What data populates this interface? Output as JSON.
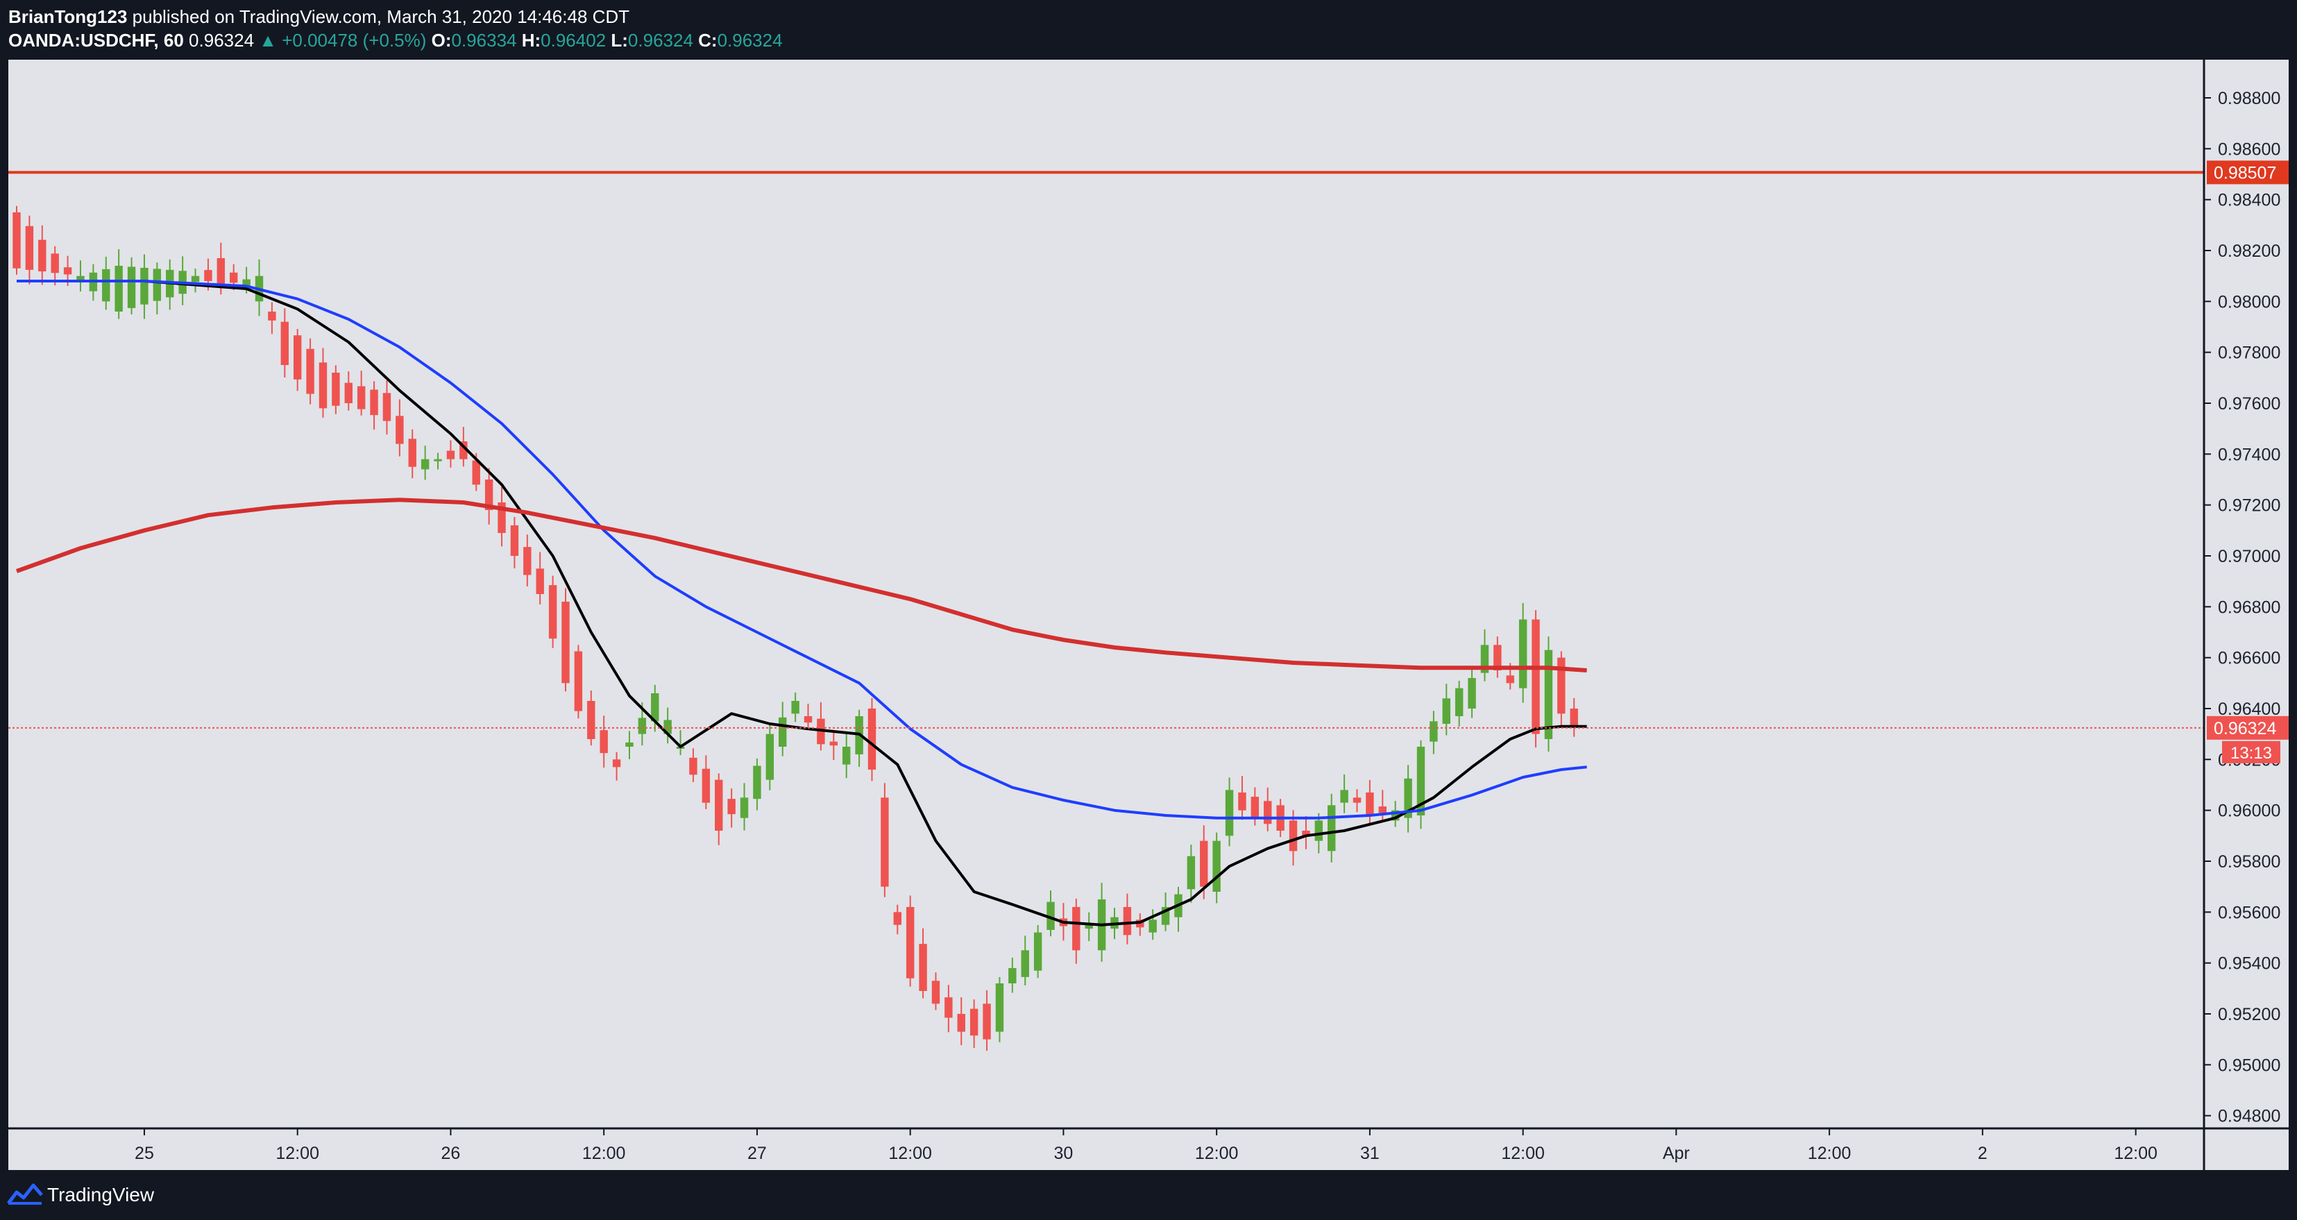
{
  "header": {
    "author": "BrianTong123",
    "published_text": " published on TradingView.com, March 31, 2020 14:46:48 CDT",
    "symbol": "OANDA:USDCHF, 60",
    "last": "0.96324",
    "change": "▲ +0.00478 (+0.5%)",
    "o_label": "O:",
    "o_value": "0.96334",
    "h_label": "H:",
    "h_value": "0.96402",
    "l_label": "L:",
    "l_value": "0.96324",
    "c_label": "C:",
    "c_value": "0.96324"
  },
  "footer": {
    "brand": "TradingView"
  },
  "colors": {
    "background": "#e1e3e8",
    "frame": "#131722",
    "up": "#5aa83a",
    "down": "#ef5350",
    "ma_black": "#000000",
    "ma_blue": "#1f3dff",
    "ma_red": "#d32f2f",
    "resistance": "#e0391f",
    "axis_text": "#1e222d"
  },
  "chart_data": {
    "type": "candlestick",
    "title": "OANDA:USDCHF, 60",
    "ylim": [
      0.9475,
      0.9895
    ],
    "xlim": [
      0,
      172
    ],
    "y_ticks": [
      "0.98800",
      "0.98600",
      "0.98400",
      "0.98200",
      "0.98000",
      "0.97800",
      "0.97600",
      "0.97400",
      "0.97200",
      "0.97000",
      "0.96800",
      "0.96600",
      "0.96400",
      "0.96200",
      "0.96000",
      "0.95800",
      "0.95600",
      "0.95400",
      "0.95200",
      "0.95000",
      "0.94800"
    ],
    "x_ticks": [
      {
        "label": "25",
        "x": 10
      },
      {
        "label": "12:00",
        "x": 22
      },
      {
        "label": "26",
        "x": 34
      },
      {
        "label": "12:00",
        "x": 46
      },
      {
        "label": "27",
        "x": 58
      },
      {
        "label": "12:00",
        "x": 70
      },
      {
        "label": "30",
        "x": 82
      },
      {
        "label": "12:00",
        "x": 94
      },
      {
        "label": "31",
        "x": 106
      },
      {
        "label": "12:00",
        "x": 118
      },
      {
        "label": "Apr",
        "x": 130
      },
      {
        "label": "12:00",
        "x": 142
      },
      {
        "label": "2",
        "x": 154
      },
      {
        "label": "12:00",
        "x": 166
      }
    ],
    "horizontal_line": {
      "value": 0.98507,
      "label": "0.98507"
    },
    "last_price": {
      "value": 0.96324,
      "label": "0.96324",
      "countdown": "13:13"
    },
    "candle_anchors": [
      [
        0,
        0.9835,
        0.9813
      ],
      [
        5,
        0.9808,
        0.981
      ],
      [
        8,
        0.9796,
        0.9814
      ],
      [
        13,
        0.9803,
        0.9812
      ],
      [
        16,
        0.9817,
        0.9806
      ],
      [
        19,
        0.98,
        0.981
      ],
      [
        21,
        0.9792,
        0.9775
      ],
      [
        24,
        0.9776,
        0.9758
      ],
      [
        26,
        0.9768,
        0.976
      ],
      [
        29,
        0.9764,
        0.9753
      ],
      [
        31,
        0.9746,
        0.9735
      ],
      [
        32,
        0.9734,
        0.9738
      ],
      [
        35,
        0.9745,
        0.9738
      ],
      [
        37,
        0.973,
        0.9718
      ],
      [
        39,
        0.9712,
        0.97
      ],
      [
        41,
        0.9695,
        0.9685
      ],
      [
        43,
        0.9682,
        0.965
      ],
      [
        45,
        0.9643,
        0.9628
      ],
      [
        47,
        0.962,
        0.9617
      ],
      [
        50,
        0.9635,
        0.9646
      ],
      [
        52,
        0.9625,
        0.9625
      ],
      [
        55,
        0.9612,
        0.9592
      ],
      [
        57,
        0.9597,
        0.9605
      ],
      [
        59,
        0.9612,
        0.963
      ],
      [
        61,
        0.9638,
        0.9643
      ],
      [
        63,
        0.9636,
        0.9626
      ],
      [
        65,
        0.9618,
        0.9625
      ],
      [
        66,
        0.9622,
        0.9637
      ],
      [
        67,
        0.964,
        0.9616
      ],
      [
        68,
        0.9605,
        0.957
      ],
      [
        69,
        0.956,
        0.9555
      ],
      [
        70,
        0.9562,
        0.9534
      ],
      [
        72,
        0.9533,
        0.9524
      ],
      [
        74,
        0.952,
        0.9513
      ],
      [
        76,
        0.9524,
        0.951
      ],
      [
        77,
        0.9513,
        0.9532
      ],
      [
        78,
        0.9532,
        0.9538
      ],
      [
        80,
        0.9537,
        0.9552
      ],
      [
        81,
        0.9553,
        0.9564
      ],
      [
        83,
        0.9562,
        0.9545
      ],
      [
        85,
        0.9545,
        0.9565
      ],
      [
        87,
        0.9562,
        0.9551
      ],
      [
        89,
        0.9552,
        0.9557
      ],
      [
        91,
        0.9558,
        0.9567
      ],
      [
        92,
        0.9569,
        0.9582
      ],
      [
        93,
        0.9588,
        0.957
      ],
      [
        94,
        0.9568,
        0.9588
      ],
      [
        95,
        0.959,
        0.9608
      ],
      [
        96,
        0.9607,
        0.96
      ],
      [
        99,
        0.9602,
        0.9592
      ],
      [
        100,
        0.9596,
        0.9584
      ],
      [
        103,
        0.9584,
        0.9602
      ],
      [
        104,
        0.9603,
        0.9608
      ],
      [
        106,
        0.9607,
        0.9598
      ],
      [
        108,
        0.9596,
        0.96
      ],
      [
        110,
        0.9598,
        0.9625
      ],
      [
        111,
        0.9627,
        0.9635
      ],
      [
        112,
        0.9634,
        0.9644
      ],
      [
        114,
        0.964,
        0.9652
      ],
      [
        115,
        0.9654,
        0.9665
      ],
      [
        116,
        0.9665,
        0.9655
      ],
      [
        117,
        0.9653,
        0.965
      ],
      [
        118,
        0.9648,
        0.9675
      ],
      [
        119,
        0.9675,
        0.963
      ],
      [
        120,
        0.9628,
        0.9663
      ],
      [
        121,
        0.966,
        0.9638
      ],
      [
        122,
        0.964,
        0.9633
      ]
    ],
    "series": [
      {
        "name": "MA (black)",
        "color": "#000000",
        "points": [
          [
            0,
            0.9808
          ],
          [
            10,
            0.9808
          ],
          [
            18,
            0.9805
          ],
          [
            22,
            0.9797
          ],
          [
            26,
            0.9784
          ],
          [
            30,
            0.9765
          ],
          [
            34,
            0.9748
          ],
          [
            38,
            0.9728
          ],
          [
            42,
            0.97
          ],
          [
            45,
            0.967
          ],
          [
            48,
            0.9645
          ],
          [
            52,
            0.9625
          ],
          [
            56,
            0.9638
          ],
          [
            59,
            0.9634
          ],
          [
            62,
            0.9632
          ],
          [
            66,
            0.963
          ],
          [
            69,
            0.9618
          ],
          [
            72,
            0.9588
          ],
          [
            75,
            0.9568
          ],
          [
            78,
            0.9563
          ],
          [
            82,
            0.9556
          ],
          [
            85,
            0.9555
          ],
          [
            88,
            0.9556
          ],
          [
            92,
            0.9565
          ],
          [
            95,
            0.9578
          ],
          [
            98,
            0.9585
          ],
          [
            101,
            0.959
          ],
          [
            104,
            0.9592
          ],
          [
            108,
            0.9597
          ],
          [
            111,
            0.9605
          ],
          [
            114,
            0.9617
          ],
          [
            117,
            0.9628
          ],
          [
            119,
            0.9632
          ],
          [
            121,
            0.9633
          ],
          [
            123,
            0.9633
          ]
        ]
      },
      {
        "name": "MA (blue)",
        "color": "#1f3dff",
        "points": [
          [
            0,
            0.9808
          ],
          [
            10,
            0.9808
          ],
          [
            18,
            0.9806
          ],
          [
            22,
            0.9801
          ],
          [
            26,
            0.9793
          ],
          [
            30,
            0.9782
          ],
          [
            34,
            0.9768
          ],
          [
            38,
            0.9752
          ],
          [
            42,
            0.9732
          ],
          [
            46,
            0.971
          ],
          [
            50,
            0.9692
          ],
          [
            54,
            0.968
          ],
          [
            58,
            0.967
          ],
          [
            62,
            0.966
          ],
          [
            66,
            0.965
          ],
          [
            70,
            0.9632
          ],
          [
            74,
            0.9618
          ],
          [
            78,
            0.9609
          ],
          [
            82,
            0.9604
          ],
          [
            86,
            0.96
          ],
          [
            90,
            0.9598
          ],
          [
            94,
            0.9597
          ],
          [
            98,
            0.9597
          ],
          [
            102,
            0.9597
          ],
          [
            106,
            0.9598
          ],
          [
            110,
            0.96
          ],
          [
            114,
            0.9606
          ],
          [
            118,
            0.9613
          ],
          [
            121,
            0.9616
          ],
          [
            123,
            0.9617
          ]
        ]
      },
      {
        "name": "MA (red)",
        "color": "#d32f2f",
        "points": [
          [
            0,
            0.9694
          ],
          [
            5,
            0.9703
          ],
          [
            10,
            0.971
          ],
          [
            15,
            0.9716
          ],
          [
            20,
            0.9719
          ],
          [
            25,
            0.9721
          ],
          [
            30,
            0.9722
          ],
          [
            35,
            0.9721
          ],
          [
            40,
            0.9717
          ],
          [
            45,
            0.9712
          ],
          [
            50,
            0.9707
          ],
          [
            55,
            0.9701
          ],
          [
            60,
            0.9695
          ],
          [
            65,
            0.9689
          ],
          [
            70,
            0.9683
          ],
          [
            74,
            0.9677
          ],
          [
            78,
            0.9671
          ],
          [
            82,
            0.9667
          ],
          [
            86,
            0.9664
          ],
          [
            90,
            0.9662
          ],
          [
            95,
            0.966
          ],
          [
            100,
            0.9658
          ],
          [
            105,
            0.9657
          ],
          [
            110,
            0.9656
          ],
          [
            115,
            0.9656
          ],
          [
            120,
            0.9656
          ],
          [
            123,
            0.9655
          ]
        ]
      }
    ]
  }
}
